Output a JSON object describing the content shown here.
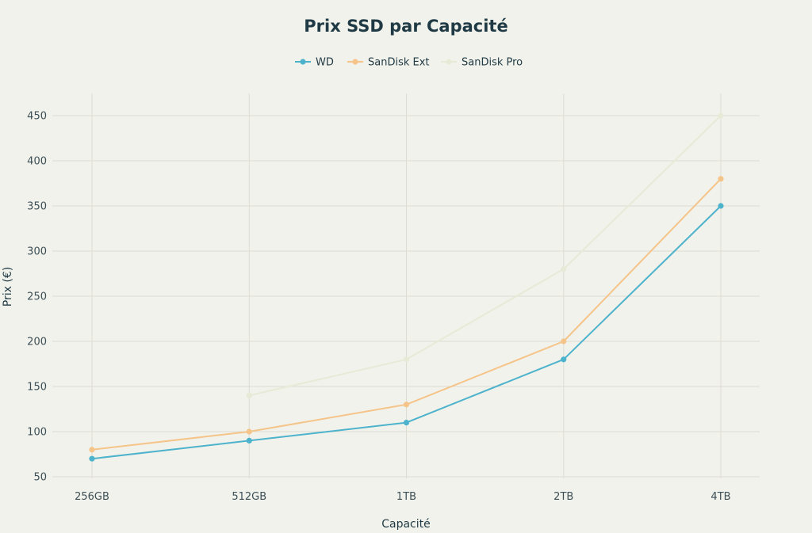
{
  "chart_data": {
    "type": "line",
    "title": "Prix SSD par Capacité",
    "xlabel": "Capacité",
    "ylabel": "Prix (€)",
    "categories": [
      "256GB",
      "512GB",
      "1TB",
      "2TB",
      "4TB"
    ],
    "ylim": [
      45,
      470
    ],
    "yticks": [
      50,
      100,
      150,
      200,
      250,
      300,
      350,
      400,
      450
    ],
    "grid": true,
    "legend_position": "top-center",
    "series": [
      {
        "name": "WD",
        "color": "#4db3cc",
        "values": [
          70,
          90,
          110,
          180,
          350
        ]
      },
      {
        "name": "SanDisk Ext",
        "color": "#f5c489",
        "values": [
          80,
          100,
          130,
          200,
          380
        ]
      },
      {
        "name": "SanDisk Pro",
        "color": "#e6ead6",
        "values": [
          null,
          140,
          180,
          280,
          450
        ]
      }
    ]
  }
}
